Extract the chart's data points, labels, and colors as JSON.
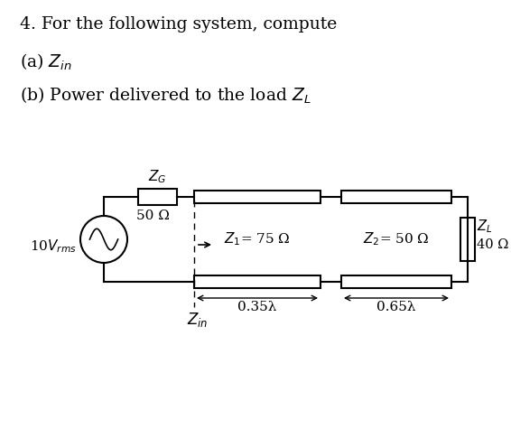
{
  "bg_color": "#ffffff",
  "text_color": "#000000",
  "title_line1": "4. For the following system, compute",
  "title_line2": "(a) $Z_{in}$",
  "title_line3": "(b) Power delivered to the load $Z_L$",
  "source_label": "10$V_{rms}$",
  "ZG_label": "$Z_G$",
  "ZG_val": "50 Ω",
  "Z1_label": "$Z_1$= 75 Ω",
  "Z2_label": "$Z_2$= 50 Ω",
  "ZL_label": "$Z_L$",
  "ZL_val": "40 Ω",
  "Zin_label": "$Z_{in}$",
  "d1_label": "0.35λ",
  "d2_label": "0.65λ",
  "line_color": "#000000",
  "lw": 1.5,
  "fig_w": 5.66,
  "fig_h": 4.75,
  "dpi": 100
}
